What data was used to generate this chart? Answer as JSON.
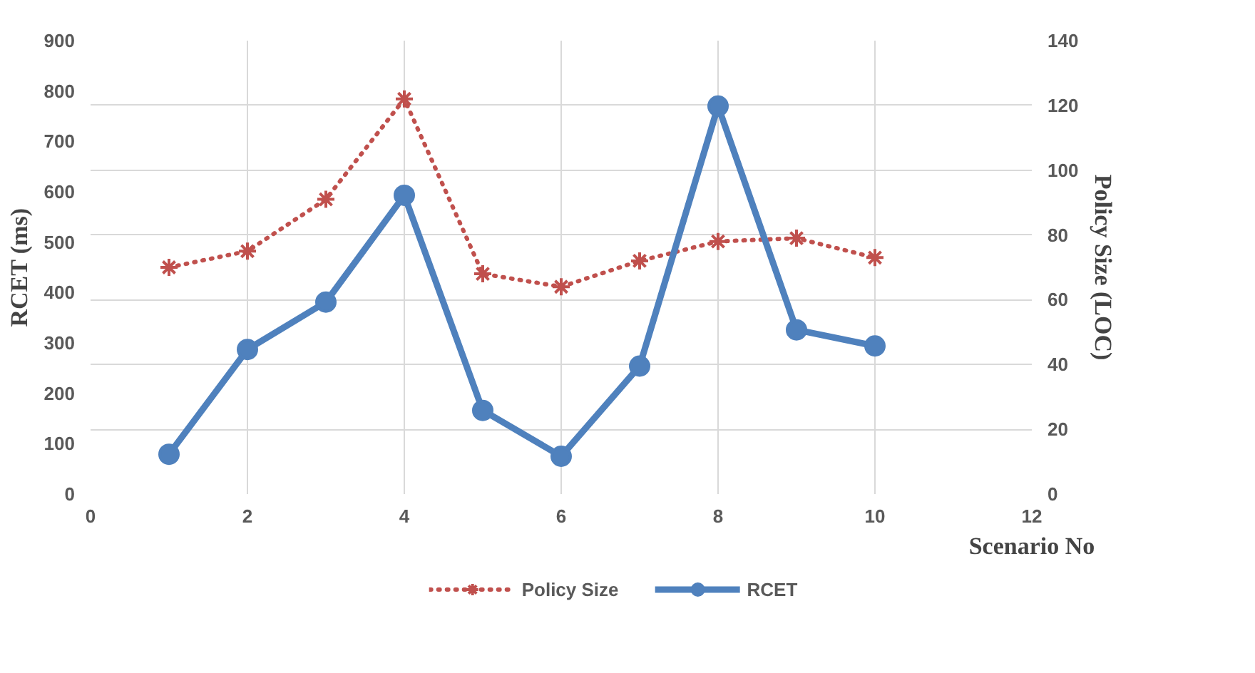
{
  "chart_data": {
    "type": "line",
    "x": [
      1,
      2,
      3,
      4,
      5,
      6,
      7,
      8,
      9,
      10
    ],
    "xlabel": "Scenario No",
    "ylabel": "RCET (ms)",
    "y2label": "Policy Size (LOC)",
    "series": [
      {
        "name": "Policy Size",
        "color": "#c0504d",
        "axis": "y2",
        "marker": "cross",
        "line_style": "dotted",
        "values": [
          70,
          75,
          91,
          122,
          68,
          64,
          72,
          78,
          79,
          73
        ]
      },
      {
        "name": "RCET",
        "color": "#4f81bd",
        "marker": "circle",
        "line_style": "solid",
        "values": [
          79,
          287,
          381,
          593,
          166,
          75,
          254,
          770,
          326,
          294
        ]
      }
    ],
    "xlim": [
      0,
      12
    ],
    "xticks": [
      0,
      2,
      4,
      6,
      8,
      10,
      12
    ],
    "ylim": [
      0,
      900
    ],
    "yticks": [
      0,
      100,
      200,
      300,
      400,
      500,
      600,
      700,
      800,
      900
    ],
    "y2lim": [
      0,
      140
    ],
    "y2ticks": [
      0,
      20,
      40,
      60,
      80,
      100,
      120,
      140
    ],
    "grid": true,
    "legend": "bottom"
  }
}
